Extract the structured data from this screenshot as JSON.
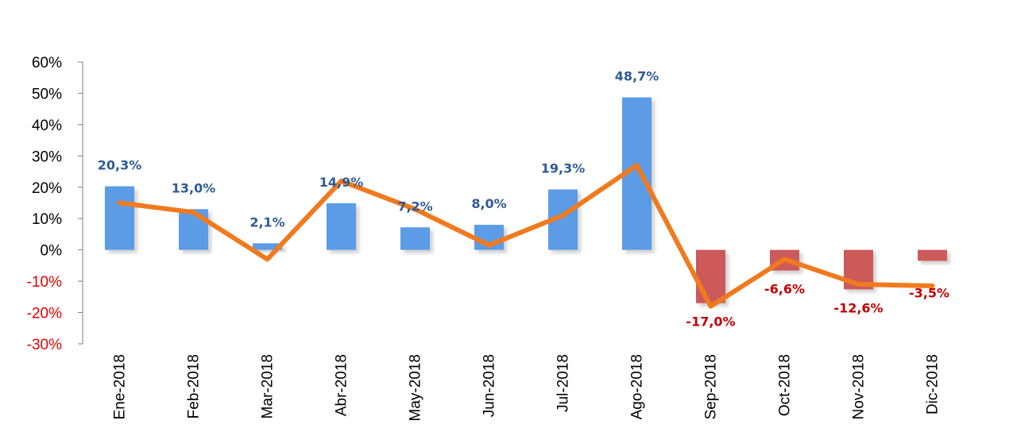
{
  "chart_data": {
    "type": "bar",
    "categories": [
      "Ene-2018",
      "Feb-2018",
      "Mar-2018",
      "Abr-2018",
      "May-2018",
      "Jun-2018",
      "Jul-2018",
      "Ago-2018",
      "Sep-2018",
      "Oct-2018",
      "Nov-2018",
      "Dic-2018"
    ],
    "series": [
      {
        "type": "bar",
        "values": [
          20.3,
          13.0,
          2.1,
          14.9,
          7.2,
          8.0,
          19.3,
          48.7,
          -17.0,
          -6.6,
          -12.6,
          -3.5
        ],
        "labels": [
          "20,3%",
          "13,0%",
          "2,1%",
          "14,9%",
          "7,2%",
          "8,0%",
          "19,3%",
          "48,7%",
          "-17,0%",
          "-6,6%",
          "-12,6%",
          "-3,5%"
        ]
      },
      {
        "type": "line",
        "values": [
          15,
          12,
          -3,
          22,
          13,
          1.5,
          11,
          27,
          -18,
          -3,
          -11,
          -11.5
        ]
      }
    ],
    "yticks": [
      "60%",
      "50%",
      "40%",
      "30%",
      "20%",
      "10%",
      "0%",
      "-10%",
      "-20%",
      "-30%"
    ],
    "ylim": [
      -30,
      60
    ],
    "title": "",
    "xlabel": "",
    "ylabel": "",
    "grid": false,
    "legend": "none",
    "colors": {
      "positive_bar": "#5b9be6",
      "negative_bar": "#cc5a5a",
      "line": "#f07a1e",
      "positive_label": "#2f5b95",
      "negative_label": "#c00000",
      "positive_tick": "#000000",
      "negative_tick": "#e00000",
      "axis": "#7f7f7f"
    }
  }
}
